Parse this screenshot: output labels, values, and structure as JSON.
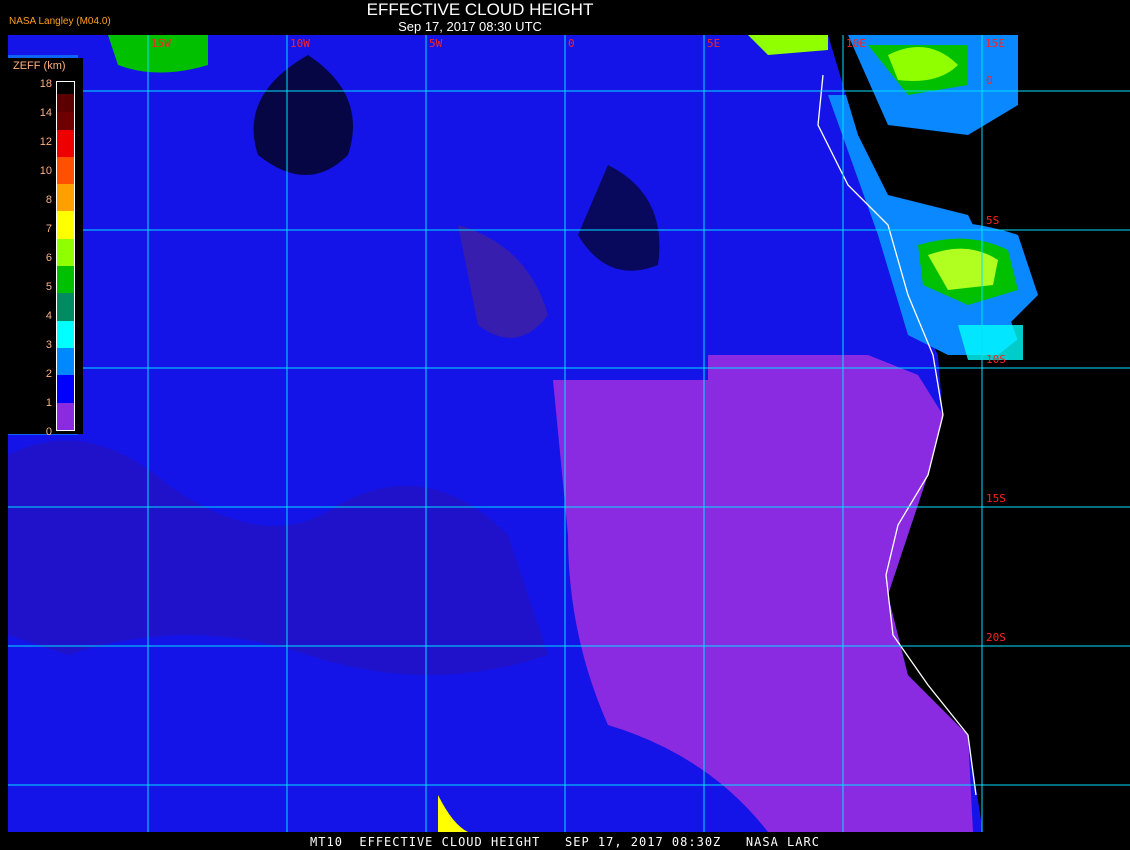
{
  "header": {
    "title": "EFFECTIVE CLOUD HEIGHT",
    "subtitle": "Sep 17, 2017 08:30 UTC",
    "source": "NASA Langley (M04.0)"
  },
  "longitude_labels": [
    "15W",
    "10W",
    "5W",
    "0",
    "5E",
    "10E",
    "15E"
  ],
  "latitude_labels": [
    "0",
    "5S",
    "10S",
    "15S",
    "20S"
  ],
  "legend": {
    "title": "ZEFF (km)",
    "ticks": [
      "18",
      "14",
      "12",
      "10",
      "8",
      "7",
      "6",
      "5",
      "4",
      "3",
      "2",
      "1",
      "0"
    ],
    "colors": [
      "#600000",
      "#ee0000",
      "#ff5000",
      "#ffa000",
      "#ffff00",
      "#90ff00",
      "#00c000",
      "#008c60",
      "#00ffff",
      "#0088ff",
      "#0000ff",
      "#8a2be2"
    ]
  },
  "map_colors": {
    "ocean_low": "#8a2be2",
    "cloud_mid": "#1010f0",
    "cloud_light": "#0a88ff",
    "clear": "#000000",
    "grid": "#00e0ff",
    "coast": "#ffffff"
  },
  "footer": "MT10  EFFECTIVE CLOUD HEIGHT   SEP 17, 2017 08:30Z   NASA LARC"
}
